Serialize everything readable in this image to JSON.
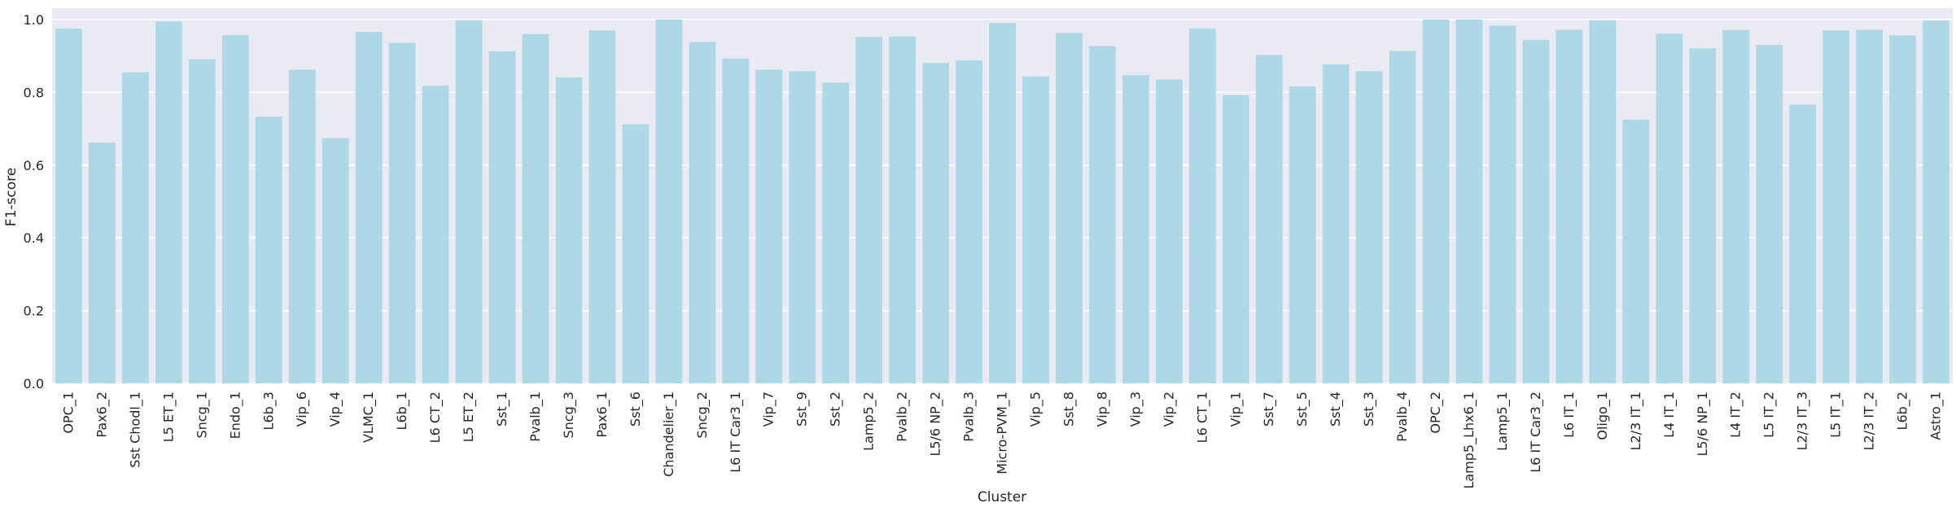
{
  "chart_data": {
    "type": "bar",
    "xlabel": "Cluster",
    "ylabel": "F1-score",
    "ylim": [
      0,
      1.0
    ],
    "yticks": [
      "0.0",
      "0.2",
      "0.4",
      "0.6",
      "0.8",
      "1.0"
    ],
    "grid": true,
    "bar_color": "#add8e6",
    "background_color": "#eaeaf2",
    "categories": [
      "OPC_1",
      "Pax6_2",
      "Sst Chodl_1",
      "L5 ET_1",
      "Sncg_1",
      "Endo_1",
      "L6b_3",
      "Vip_6",
      "Vip_4",
      "VLMC_1",
      "L6b_1",
      "L6 CT_2",
      "L5 ET_2",
      "Sst_1",
      "Pvalb_1",
      "Sncg_3",
      "Pax6_1",
      "Sst_6",
      "Chandelier_1",
      "Sncg_2",
      "L6 IT Car3_1",
      "Vip_7",
      "Sst_9",
      "Sst_2",
      "Lamp5_2",
      "Pvalb_2",
      "L5/6 NP_2",
      "Pvalb_3",
      "Micro-PVM_1",
      "Vip_5",
      "Sst_8",
      "Vip_8",
      "Vip_3",
      "Vip_2",
      "L6 CT_1",
      "Vip_1",
      "Sst_7",
      "Sst_5",
      "Sst_4",
      "Sst_3",
      "Pvalb_4",
      "OPC_2",
      "Lamp5_Lhx6_1",
      "Lamp5_1",
      "L6 IT Car3_2",
      "L6 IT_1",
      "Oligo_1",
      "L2/3 IT_1",
      "L4 IT_1",
      "L5/6 NP_1",
      "L4 IT_2",
      "L5 IT_2",
      "L2/3 IT_3",
      "L5 IT_1",
      "L2/3 IT_2",
      "L6b_2",
      "Astro_1"
    ],
    "values": [
      0.975,
      0.662,
      0.855,
      0.995,
      0.891,
      0.957,
      0.733,
      0.862,
      0.674,
      0.966,
      0.936,
      0.818,
      0.998,
      0.913,
      0.96,
      0.841,
      0.97,
      0.712,
      1.0,
      0.938,
      0.893,
      0.862,
      0.858,
      0.827,
      0.952,
      0.953,
      0.881,
      0.888,
      0.99,
      0.844,
      0.963,
      0.927,
      0.847,
      0.835,
      0.975,
      0.792,
      0.903,
      0.816,
      0.877,
      0.858,
      0.914,
      1.0,
      1.0,
      0.983,
      0.944,
      0.972,
      0.998,
      0.725,
      0.961,
      0.921,
      0.971,
      0.93,
      0.766,
      0.97,
      0.972,
      0.956,
      0.997
    ]
  }
}
